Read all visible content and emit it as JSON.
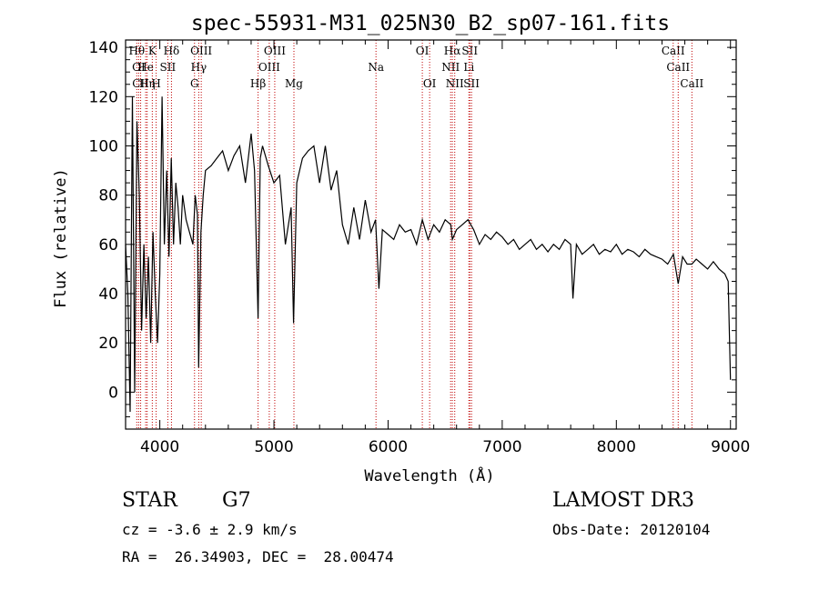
{
  "chart_data": {
    "type": "line",
    "title": "spec-55931-M31_025N30_B2_sp07-161.fits",
    "xlabel": "Wavelength (Å)",
    "ylabel": "Flux (relative)",
    "xlim": [
      3700,
      9050
    ],
    "ylim": [
      -15,
      143
    ],
    "xticks": [
      4000,
      5000,
      6000,
      7000,
      8000,
      9000
    ],
    "yticks": [
      0,
      20,
      40,
      60,
      80,
      100,
      120,
      140
    ],
    "series": [
      {
        "name": "spectrum",
        "x": [
          3700,
          3720,
          3740,
          3760,
          3780,
          3800,
          3820,
          3840,
          3860,
          3880,
          3900,
          3920,
          3940,
          3960,
          3980,
          4000,
          4020,
          4040,
          4060,
          4080,
          4100,
          4120,
          4140,
          4160,
          4180,
          4200,
          4230,
          4260,
          4290,
          4310,
          4330,
          4340,
          4360,
          4380,
          4400,
          4450,
          4500,
          4550,
          4600,
          4650,
          4700,
          4750,
          4800,
          4830,
          4861,
          4880,
          4900,
          4950,
          5000,
          5050,
          5100,
          5150,
          5172,
          5200,
          5250,
          5300,
          5350,
          5400,
          5450,
          5500,
          5550,
          5600,
          5650,
          5700,
          5750,
          5800,
          5850,
          5890,
          5920,
          5950,
          6000,
          6050,
          6100,
          6150,
          6200,
          6250,
          6300,
          6350,
          6400,
          6450,
          6500,
          6550,
          6563,
          6600,
          6650,
          6700,
          6750,
          6800,
          6850,
          6900,
          6950,
          7000,
          7050,
          7100,
          7150,
          7200,
          7250,
          7300,
          7350,
          7400,
          7450,
          7500,
          7550,
          7600,
          7620,
          7650,
          7700,
          7750,
          7800,
          7850,
          7900,
          7950,
          8000,
          8050,
          8100,
          8150,
          8200,
          8250,
          8300,
          8350,
          8400,
          8450,
          8500,
          8542,
          8580,
          8620,
          8662,
          8700,
          8750,
          8800,
          8850,
          8900,
          8950,
          8980,
          9000
        ],
        "y": [
          60,
          40,
          -8,
          120,
          0,
          110,
          80,
          25,
          60,
          30,
          55,
          20,
          65,
          40,
          20,
          48,
          120,
          60,
          90,
          55,
          95,
          60,
          85,
          75,
          60,
          80,
          70,
          65,
          60,
          80,
          72,
          10,
          65,
          80,
          90,
          92,
          95,
          98,
          90,
          96,
          100,
          85,
          105,
          90,
          30,
          95,
          100,
          92,
          85,
          88,
          60,
          75,
          28,
          85,
          95,
          98,
          100,
          85,
          100,
          82,
          90,
          68,
          60,
          75,
          62,
          78,
          65,
          70,
          42,
          66,
          64,
          62,
          68,
          65,
          66,
          60,
          70,
          62,
          68,
          65,
          70,
          68,
          62,
          66,
          68,
          70,
          66,
          60,
          64,
          62,
          65,
          63,
          60,
          62,
          58,
          60,
          62,
          58,
          60,
          57,
          60,
          58,
          62,
          60,
          38,
          60,
          56,
          58,
          60,
          56,
          58,
          57,
          60,
          56,
          58,
          57,
          55,
          58,
          56,
          55,
          54,
          52,
          56,
          44,
          55,
          52,
          52,
          54,
          52,
          50,
          53,
          50,
          48,
          45,
          5
        ]
      }
    ],
    "line_markers": [
      {
        "label": "Hθ",
        "wavelength": 3798,
        "row": 0
      },
      {
        "label": "OI",
        "wavelength": 3815,
        "row": 1
      },
      {
        "label": "CII",
        "wavelength": 3832,
        "row": 2
      },
      {
        "label": "Hη",
        "wavelength": 3889,
        "row": 2
      },
      {
        "label": "He",
        "wavelength": 3876,
        "row": 1
      },
      {
        "label": "K",
        "wavelength": 3934,
        "row": 0
      },
      {
        "label": "H",
        "wavelength": 3968,
        "row": 2
      },
      {
        "label": "SII",
        "wavelength": 4070,
        "row": 1
      },
      {
        "label": "Hδ",
        "wavelength": 4102,
        "row": 0
      },
      {
        "label": "G",
        "wavelength": 4304,
        "row": 2
      },
      {
        "label": "Hγ",
        "wavelength": 4341,
        "row": 1
      },
      {
        "label": "OIII",
        "wavelength": 4363,
        "row": 0
      },
      {
        "label": "Hβ",
        "wavelength": 4861,
        "row": 2
      },
      {
        "label": "OIII",
        "wavelength": 4959,
        "row": 1
      },
      {
        "label": "OIII",
        "wavelength": 5007,
        "row": 0
      },
      {
        "label": "Mg",
        "wavelength": 5175,
        "row": 2
      },
      {
        "label": "Na",
        "wavelength": 5894,
        "row": 1
      },
      {
        "label": "OI",
        "wavelength": 6300,
        "row": 0
      },
      {
        "label": "OI",
        "wavelength": 6364,
        "row": 2
      },
      {
        "label": "NII",
        "wavelength": 6548,
        "row": 1
      },
      {
        "label": "Hα",
        "wavelength": 6563,
        "row": 0
      },
      {
        "label": "NII",
        "wavelength": 6584,
        "row": 2
      },
      {
        "label": "Li",
        "wavelength": 6708,
        "row": 1
      },
      {
        "label": "SII",
        "wavelength": 6716,
        "row": 0
      },
      {
        "label": "SII",
        "wavelength": 6731,
        "row": 2
      },
      {
        "label": "CaII",
        "wavelength": 8498,
        "row": 0
      },
      {
        "label": "CaII",
        "wavelength": 8542,
        "row": 1
      },
      {
        "label": "CaII",
        "wavelength": 8662,
        "row": 2
      }
    ]
  },
  "info": {
    "class": "STAR",
    "subclass": "G7",
    "survey": "LAMOST DR3",
    "cz": "cz = -3.6 ± 2.9 km/s",
    "obs_date": "Obs-Date: 20120104",
    "coords": "RA =  26.34903, DEC =  28.00474"
  },
  "colors": {
    "line_marker": "#c00000",
    "spectrum": "#000000"
  }
}
